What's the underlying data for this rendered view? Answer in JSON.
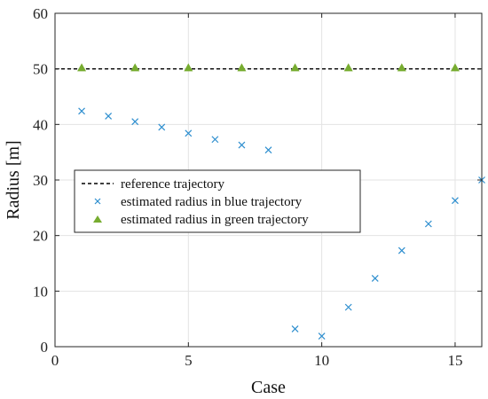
{
  "chart_data": {
    "type": "scatter",
    "xlabel": "Case",
    "ylabel": "Radius [m]",
    "xlim": [
      0,
      16
    ],
    "ylim": [
      0,
      60
    ],
    "xticks": [
      0,
      5,
      10,
      15
    ],
    "yticks": [
      0,
      10,
      20,
      30,
      40,
      50,
      60
    ],
    "grid": true,
    "legend_position": "center-left",
    "reference": {
      "name": "reference trajectory",
      "y": 50,
      "color": "#000000"
    },
    "series": [
      {
        "name": "estimated radius in blue trajectory",
        "marker": "x",
        "color": "#2f8fcf",
        "x": [
          1,
          2,
          3,
          4,
          5,
          6,
          7,
          8,
          9,
          10,
          11,
          12,
          13,
          14,
          15,
          16
        ],
        "y": [
          42.4,
          41.5,
          40.5,
          39.5,
          38.4,
          37.3,
          36.3,
          35.4,
          3.2,
          1.9,
          7.1,
          12.3,
          17.3,
          22.1,
          26.3,
          30.0
        ]
      },
      {
        "name": "estimated radius in green trajectory",
        "marker": "triangle",
        "color": "#77ac30",
        "x": [
          1,
          3,
          5,
          7,
          9,
          11,
          13,
          15
        ],
        "y": [
          50.2,
          50.2,
          50.2,
          50.2,
          50.2,
          50.2,
          50.2,
          50.2
        ]
      }
    ]
  }
}
